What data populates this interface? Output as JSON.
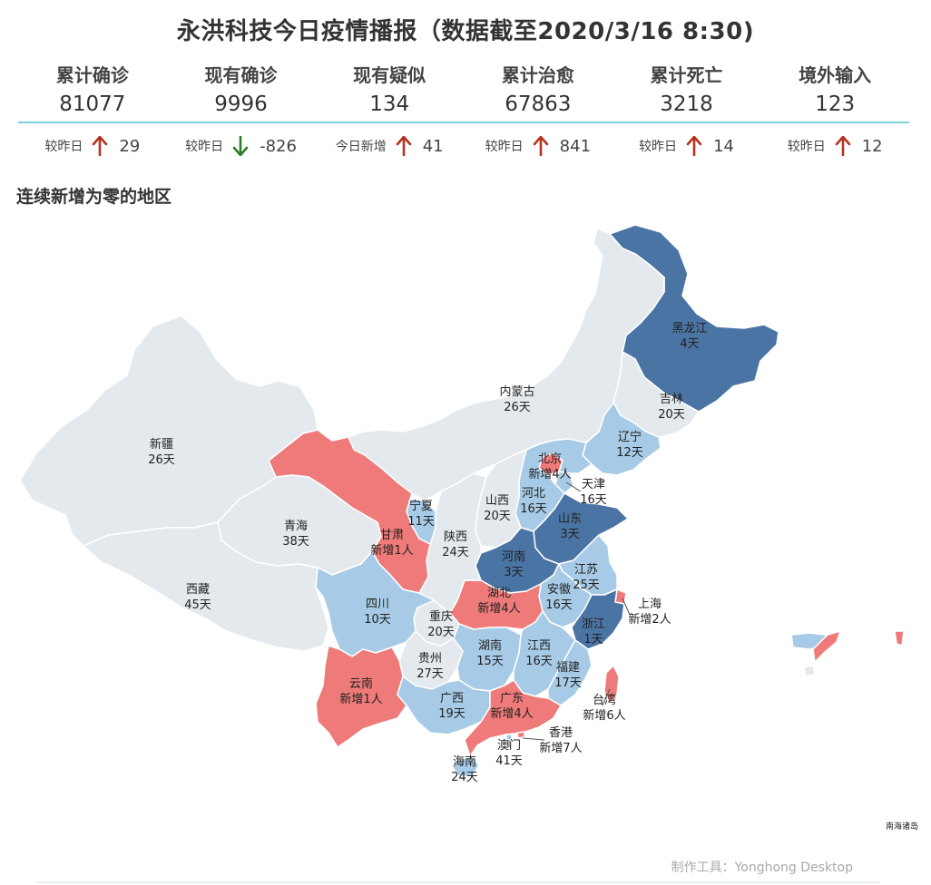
{
  "title": "永洪科技今日疫情播报（数据截至2020/3/16 8:30)",
  "stats": [
    {
      "label": "累计确诊",
      "value": "81077",
      "delta_label": "较昨日",
      "delta": "29",
      "trend": "up"
    },
    {
      "label": "现有确诊",
      "value": "9996",
      "delta_label": "较昨日",
      "delta": "-826",
      "trend": "down"
    },
    {
      "label": "现有疑似",
      "value": "134",
      "delta_label": "今日新增",
      "delta": "41",
      "trend": "up"
    },
    {
      "label": "累计治愈",
      "value": "67863",
      "delta_label": "较昨日",
      "delta": "841",
      "trend": "up"
    },
    {
      "label": "累计死亡",
      "value": "3218",
      "delta_label": "较昨日",
      "delta": "14",
      "trend": "up"
    },
    {
      "label": "境外输入",
      "value": "123",
      "delta_label": "较昨日",
      "delta": "12",
      "trend": "up"
    }
  ],
  "colors": {
    "up_arrow": "#b5331f",
    "down_arrow": "#2e7d2e",
    "gray": "#e4e9ee",
    "light_blue": "#a7cbe6",
    "dark_blue": "#4a74a4",
    "red": "#ef7a7a"
  },
  "section_title": "连续新增为零的地区",
  "map": {
    "provinces": [
      {
        "name": "黑龙江",
        "value": "4天",
        "category": "dark_blue"
      },
      {
        "name": "吉林",
        "value": "20天",
        "category": "gray"
      },
      {
        "name": "辽宁",
        "value": "12天",
        "category": "light_blue"
      },
      {
        "name": "内蒙古",
        "value": "26天",
        "category": "gray"
      },
      {
        "name": "新疆",
        "value": "26天",
        "category": "gray"
      },
      {
        "name": "北京",
        "value": "新增4人",
        "category": "red"
      },
      {
        "name": "天津",
        "value": "16天",
        "category": "light_blue"
      },
      {
        "name": "河北",
        "value": "16天",
        "category": "light_blue"
      },
      {
        "name": "山西",
        "value": "20天",
        "category": "gray"
      },
      {
        "name": "宁夏",
        "value": "11天",
        "category": "light_blue"
      },
      {
        "name": "山东",
        "value": "3天",
        "category": "dark_blue"
      },
      {
        "name": "青海",
        "value": "38天",
        "category": "gray"
      },
      {
        "name": "甘肃",
        "value": "新增1人",
        "category": "red"
      },
      {
        "name": "陕西",
        "value": "24天",
        "category": "gray"
      },
      {
        "name": "河南",
        "value": "3天",
        "category": "dark_blue"
      },
      {
        "name": "江苏",
        "value": "25天",
        "category": "light_blue"
      },
      {
        "name": "西藏",
        "value": "45天",
        "category": "gray"
      },
      {
        "name": "四川",
        "value": "10天",
        "category": "light_blue"
      },
      {
        "name": "湖北",
        "value": "新增4人",
        "category": "red"
      },
      {
        "name": "安徽",
        "value": "16天",
        "category": "light_blue"
      },
      {
        "name": "上海",
        "value": "新增2人",
        "category": "red"
      },
      {
        "name": "重庆",
        "value": "20天",
        "category": "gray"
      },
      {
        "name": "浙江",
        "value": "1天",
        "category": "dark_blue"
      },
      {
        "name": "贵州",
        "value": "27天",
        "category": "gray"
      },
      {
        "name": "湖南",
        "value": "15天",
        "category": "light_blue"
      },
      {
        "name": "江西",
        "value": "16天",
        "category": "light_blue"
      },
      {
        "name": "福建",
        "value": "17天",
        "category": "light_blue"
      },
      {
        "name": "云南",
        "value": "新增1人",
        "category": "red"
      },
      {
        "name": "台湾",
        "value": "新增6人",
        "category": "red"
      },
      {
        "name": "广西",
        "value": "19天",
        "category": "light_blue"
      },
      {
        "name": "广东",
        "value": "新增4人",
        "category": "red"
      },
      {
        "name": "香港",
        "value": "新增7人",
        "category": "red"
      },
      {
        "name": "澳门",
        "value": "41天",
        "category": "light_blue"
      },
      {
        "name": "海南",
        "value": "24天",
        "category": "light_blue"
      }
    ],
    "south_sea_label": "南海诸岛"
  },
  "footer": "制作工具：Yonghong Desktop"
}
